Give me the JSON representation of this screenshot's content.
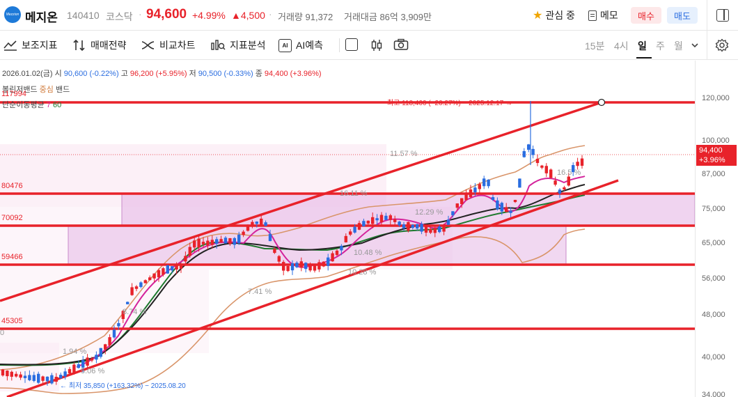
{
  "stock": {
    "name": "메지온",
    "code": "140410",
    "market": "코스닥",
    "separator": "·",
    "price": "94,600",
    "change_pct": "+4.99%",
    "change_amt": "▲4,500",
    "volume": "거래량 91,372",
    "trade_amount": "거래대금 86억 3,909만",
    "logo_text": "Mezzion"
  },
  "header_actions": {
    "watch_label": "관심 중",
    "memo_label": "메모",
    "buy_label": "매수",
    "sell_label": "매도"
  },
  "toolbar": {
    "indicator_label": "보조지표",
    "strategy_label": "매매전략",
    "compare_label": "비교차트",
    "analysis_label": "지표분석",
    "ai_label": "AI예측",
    "ai_icon_text": "AI",
    "timeframes": [
      "15분",
      "4시",
      "일",
      "주",
      "월"
    ],
    "active_timeframe": "일"
  },
  "ohlc_info": {
    "date": "2026.01.02(금)",
    "open_label": "시",
    "open": "90,600 (-0.22%)",
    "high_label": "고",
    "high": "96,200 (+5.95%)",
    "low_label": "저",
    "low": "90,500 (-0.33%)",
    "close_label": "종",
    "close": "94,400 (+3.96%)"
  },
  "indicators": {
    "bollinger_label": "볼린저밴드",
    "bollinger_center": "중심",
    "bollinger_suffix": "밴드",
    "ma_label": "단순이동평균",
    "ma_periods": [
      "7",
      "60"
    ]
  },
  "y_axis_ticks": [
    "120,000",
    "100,000",
    "87,000",
    "75,000",
    "65,000",
    "56,000",
    "48,000",
    "40,000",
    "34,000"
  ],
  "price_tag": {
    "price": "94,400",
    "pct": "+3.96%"
  },
  "levels": [
    "117994",
    "80476",
    "70092",
    "59466",
    "45305"
  ],
  "annotations": {
    "high_label": "최고 118,400 (−20.27%) − 2025.12.17 →",
    "low_label": "← 최저 35,850 (+163.32%) − 2025.08.20",
    "pct_a": "11.57 %",
    "pct_b": "16.5 %",
    "pct_c": "16.11 %",
    "pct_d": "12.29 %",
    "pct_e": "10.48 %",
    "pct_f": "10.28 %",
    "pct_g": "7.41 %",
    "pct_h": "8.74 %",
    "pct_i": "1.94 %",
    "pct_j": "5.06 %",
    "pct_k": "0"
  },
  "colors": {
    "up": "#e8222a",
    "down": "#2a6de0",
    "bollinger": "#d9956a",
    "ma_short": "#d4239b",
    "ma_mid": "#222222",
    "ma_long": "#1f7a2f",
    "trend_line": "#e8222a",
    "zone_fill": "#e6b8e6"
  }
}
